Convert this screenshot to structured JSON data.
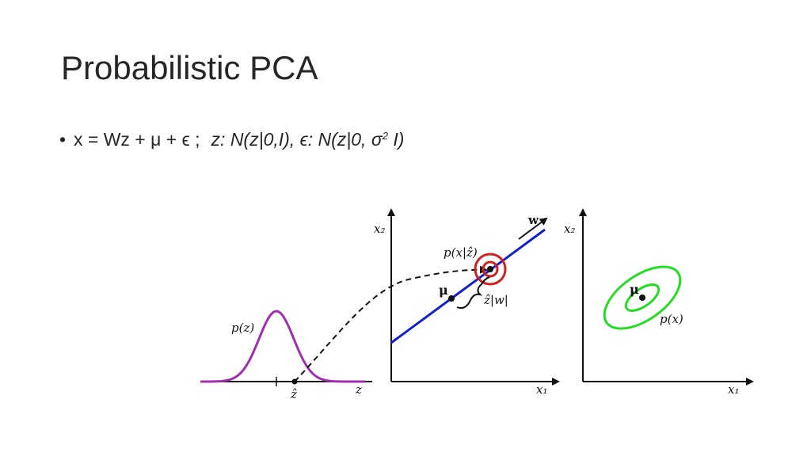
{
  "slide": {
    "title": "Probabilistic PCA",
    "bullet": {
      "symbol": "•",
      "equation": "x = Wz + μ + ϵ ;",
      "dist_z": "z: N(z|0,I),",
      "dist_eps_prefix": "ϵ: N(z|0, σ",
      "dist_eps_sup": "2",
      "dist_eps_suffix": " I)"
    }
  },
  "figure": {
    "panel_left": {
      "curve_label": "p(z)",
      "axis_label": "z",
      "point_label": "ẑ"
    },
    "panel_middle": {
      "y_axis_label": "x₂",
      "x_axis_label": "x₁",
      "mu_label": "μ",
      "w_label": "w",
      "cond_label": "p(x|ẑ)",
      "offset_label": "ẑ|w|"
    },
    "panel_right": {
      "y_axis_label": "x₂",
      "x_axis_label": "x₁",
      "mu_label": "μ",
      "marginal_label": "p(x)"
    },
    "colors": {
      "gaussian_curve": "#a02fb0",
      "principal_line": "#1020d0",
      "conditional_circles": "#d02020",
      "marginal_ellipses": "#22dd22"
    }
  }
}
